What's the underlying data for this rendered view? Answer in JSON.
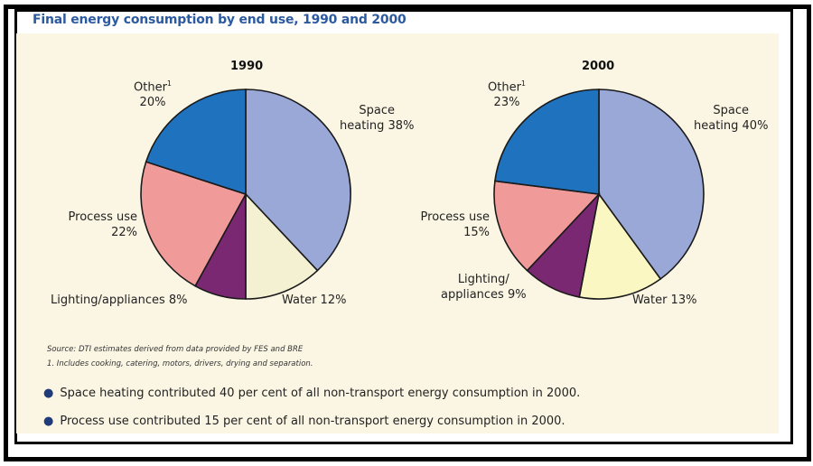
{
  "title": "Final energy consumption by end use, 1990 and 2000",
  "chart_data": [
    {
      "type": "pie",
      "title": "1990",
      "unit": "%",
      "slices": [
        {
          "name": "Space heating",
          "value": 38,
          "color": "#9aa8d8"
        },
        {
          "name": "Water",
          "value": 12,
          "color": "#f4f1d2"
        },
        {
          "name": "Lighting/appliances",
          "value": 8,
          "color": "#7a2872"
        },
        {
          "name": "Process use",
          "value": 22,
          "color": "#f19a9a"
        },
        {
          "name": "Other",
          "value": 20,
          "color": "#1f72bd"
        }
      ],
      "labels": {
        "other_name": "Other",
        "other_sup": "1",
        "other_value": "20%",
        "space_line1": "Space",
        "space_line2": "heating 38%",
        "process_line1": "Process use",
        "process_line2": "22%",
        "lighting": "Lighting/appliances 8%",
        "water": "Water 12%"
      }
    },
    {
      "type": "pie",
      "title": "2000",
      "unit": "%",
      "slices": [
        {
          "name": "Space heating",
          "value": 40,
          "color": "#9aa8d8"
        },
        {
          "name": "Water",
          "value": 13,
          "color": "#fbf7c3"
        },
        {
          "name": "Lighting/appliances",
          "value": 9,
          "color": "#7a2872"
        },
        {
          "name": "Process use",
          "value": 15,
          "color": "#f19a9a"
        },
        {
          "name": "Other",
          "value": 23,
          "color": "#1f72bd"
        }
      ],
      "labels": {
        "other_name": "Other",
        "other_sup": "1",
        "other_value": "23%",
        "space_line1": "Space",
        "space_line2": "heating 40%",
        "process_line1": "Process use",
        "process_line2": "15%",
        "lighting_line1": "Lighting/",
        "lighting_line2": "appliances 9%",
        "water": "Water 13%"
      }
    }
  ],
  "source": "Source: DTI estimates derived from data provided by FES and BRE",
  "footnote": "1. Includes cooking, catering, motors, drivers, drying and separation.",
  "bullets": [
    "Space heating contributed 40 per cent of all non-transport energy consumption in 2000.",
    "Process use contributed 15 per cent of all non-transport energy consumption in 2000."
  ]
}
